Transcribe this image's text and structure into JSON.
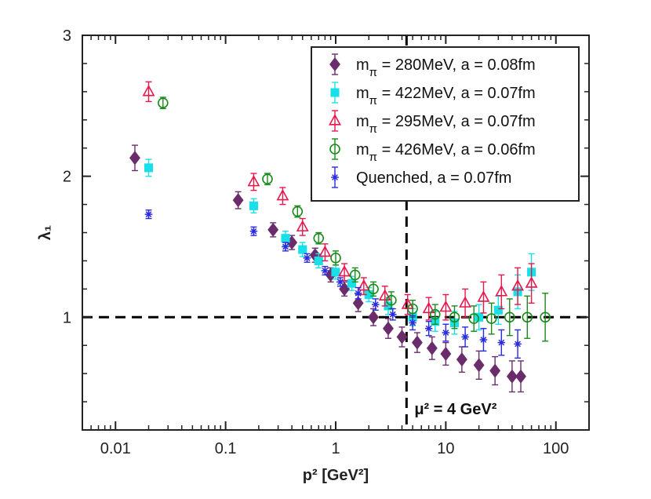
{
  "chart_data": {
    "type": "scatter",
    "xscale": "log",
    "xlim": [
      0.005,
      200
    ],
    "ylim": [
      0.2,
      3
    ],
    "xlabel": "p² [GeV²]",
    "ylabel": "λ₁",
    "xticks": [
      0.01,
      0.1,
      1,
      10,
      100
    ],
    "xtick_labels": [
      "0.01",
      "0.1",
      "1",
      "10",
      "100"
    ],
    "yticks": [
      1,
      2,
      3
    ],
    "ytick_labels": [
      "1",
      "2",
      "3"
    ],
    "hlines": [
      1
    ],
    "vlines": [
      4.4
    ],
    "annotation": "μ² = 4 GeV²",
    "legend_position": "top-right",
    "series": [
      {
        "name": "m_π = 280MeV, a = 0.08fm",
        "label_sub": "π",
        "label_rest": " = 280MeV, a = 0.08fm",
        "color": "#6B2C6B",
        "marker": "diamond",
        "filled": true,
        "x": [
          0.015,
          0.13,
          0.27,
          0.4,
          0.65,
          0.9,
          1.2,
          1.6,
          2.2,
          3,
          4,
          5.5,
          7.5,
          10,
          14,
          20,
          28,
          40,
          48
        ],
        "y": [
          2.13,
          1.83,
          1.62,
          1.53,
          1.44,
          1.3,
          1.2,
          1.1,
          1.0,
          0.92,
          0.86,
          0.82,
          0.78,
          0.74,
          0.7,
          0.66,
          0.62,
          0.58,
          0.58
        ],
        "err": [
          0.09,
          0.06,
          0.05,
          0.05,
          0.05,
          0.05,
          0.05,
          0.06,
          0.06,
          0.07,
          0.07,
          0.07,
          0.08,
          0.08,
          0.09,
          0.1,
          0.1,
          0.11,
          0.11
        ]
      },
      {
        "name": "m_π = 422MeV, a = 0.07fm",
        "label_sub": "π",
        "label_rest": " = 422MeV, a = 0.07fm",
        "color": "#19E0E8",
        "marker": "square",
        "filled": true,
        "x": [
          0.02,
          0.18,
          0.35,
          0.5,
          0.7,
          1.0,
          1.4,
          2,
          3,
          5,
          8,
          12,
          20,
          30,
          45,
          60
        ],
        "y": [
          2.06,
          1.79,
          1.56,
          1.48,
          1.4,
          1.32,
          1.24,
          1.16,
          1.08,
          1.0,
          0.97,
          0.96,
          1.0,
          1.05,
          1.18,
          1.32
        ],
        "err": [
          0.06,
          0.05,
          0.05,
          0.05,
          0.05,
          0.05,
          0.05,
          0.05,
          0.06,
          0.06,
          0.07,
          0.08,
          0.09,
          0.1,
          0.12,
          0.13
        ]
      },
      {
        "name": "m_π = 295MeV, a = 0.07fm",
        "label_sub": "π",
        "label_rest": " = 295MeV, a = 0.07fm",
        "color": "#E8174B",
        "marker": "triangle",
        "filled": false,
        "x": [
          0.02,
          0.18,
          0.33,
          0.5,
          0.8,
          1.2,
          1.8,
          2.8,
          4.5,
          7,
          10,
          15,
          22,
          32,
          45,
          60
        ],
        "y": [
          2.6,
          1.96,
          1.86,
          1.64,
          1.46,
          1.32,
          1.22,
          1.15,
          1.09,
          1.06,
          1.07,
          1.1,
          1.14,
          1.18,
          1.22,
          1.24
        ],
        "err": [
          0.07,
          0.06,
          0.06,
          0.06,
          0.06,
          0.06,
          0.06,
          0.07,
          0.07,
          0.08,
          0.09,
          0.1,
          0.11,
          0.12,
          0.13,
          0.14
        ]
      },
      {
        "name": "m_π = 426MeV, a = 0.06fm",
        "label_sub": "π",
        "label_rest": " = 426MeV, a = 0.06fm",
        "color": "#1A8A1A",
        "marker": "circle",
        "filled": false,
        "x": [
          0.027,
          0.24,
          0.45,
          0.7,
          1.0,
          1.5,
          2.2,
          3.2,
          5,
          8,
          12,
          18,
          26,
          38,
          55,
          80
        ],
        "y": [
          2.52,
          1.98,
          1.75,
          1.56,
          1.42,
          1.3,
          1.2,
          1.12,
          1.06,
          1.02,
          1.0,
          0.99,
          0.99,
          1.0,
          1.0,
          1.0
        ],
        "err": [
          0.04,
          0.04,
          0.04,
          0.04,
          0.05,
          0.05,
          0.05,
          0.06,
          0.06,
          0.07,
          0.08,
          0.09,
          0.11,
          0.13,
          0.15,
          0.17
        ]
      },
      {
        "name": "Quenched,       a = 0.07fm",
        "label_sub": "",
        "label_rest": "Quenched,       a = 0.07fm",
        "color": "#2A2AE0",
        "marker": "star",
        "filled": false,
        "x": [
          0.02,
          0.18,
          0.35,
          0.55,
          0.8,
          1.1,
          1.6,
          2.3,
          3.3,
          5,
          7,
          10,
          15,
          22,
          32,
          45
        ],
        "y": [
          1.73,
          1.61,
          1.5,
          1.42,
          1.33,
          1.25,
          1.17,
          1.09,
          1.02,
          0.96,
          0.92,
          0.89,
          0.86,
          0.84,
          0.82,
          0.81
        ],
        "err": [
          0.03,
          0.03,
          0.03,
          0.03,
          0.03,
          0.03,
          0.04,
          0.04,
          0.04,
          0.05,
          0.05,
          0.06,
          0.07,
          0.08,
          0.09,
          0.1
        ]
      }
    ]
  }
}
